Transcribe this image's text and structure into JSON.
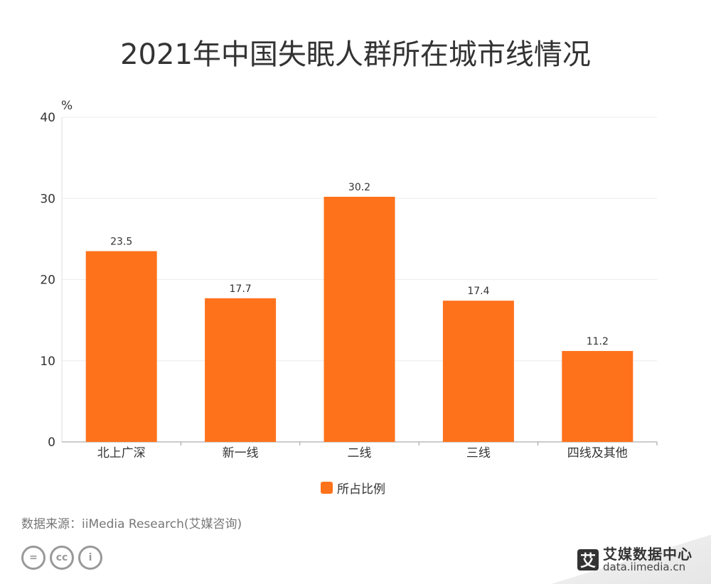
{
  "title": "2021年中国失眠人群所在城市线情况",
  "source": "数据来源：iiMedia Research(艾媒咨询)",
  "logo": {
    "mark": "艾",
    "name": "艾媒数据中心",
    "url": "data.iimedia.cn"
  },
  "cc_icons": [
    "=",
    "cc",
    "i"
  ],
  "chart_data": {
    "type": "bar",
    "title": "2021年中国失眠人群所在城市线情况",
    "ylabel": "%",
    "xlabel": "",
    "ylim": [
      0,
      40
    ],
    "yticks": [
      "0",
      "10",
      "20",
      "30",
      "40"
    ],
    "categories": [
      "北上广深",
      "新一线",
      "二线",
      "三线",
      "四线及其他"
    ],
    "series": [
      {
        "name": "所占比例",
        "values": [
          23.5,
          17.7,
          30.2,
          17.4,
          11.2
        ],
        "labels": [
          "23.5",
          "17.7",
          "30.2",
          "17.4",
          "11.2"
        ]
      }
    ],
    "bar_color": "#ff721c",
    "grid": true,
    "legend": "bottom"
  }
}
